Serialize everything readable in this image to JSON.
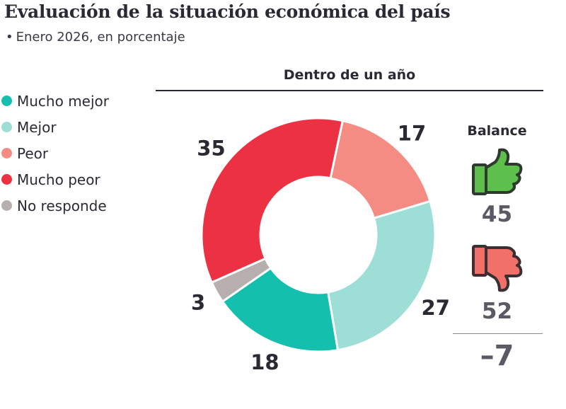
{
  "header": {
    "title": "Evaluación de la situación económica del país",
    "subtitle_bullet": "•",
    "subtitle": "Enero 2026, en porcentaje"
  },
  "chart_data": {
    "type": "pie",
    "variant": "donut",
    "title": "Dentro de un año",
    "categories": [
      "Mucho mejor",
      "Mejor",
      "Peor",
      "Mucho peor",
      "No responde"
    ],
    "values": [
      18,
      27,
      17,
      35,
      3
    ],
    "colors": [
      "#14bfae",
      "#9ddfd6",
      "#f58c84",
      "#ec3242",
      "#b7afad"
    ],
    "value_labels": [
      "18",
      "27",
      "17",
      "35",
      "3"
    ],
    "legend_position": "left"
  },
  "legend": [
    {
      "label": "Mucho mejor",
      "color": "#14bfae"
    },
    {
      "label": "Mejor",
      "color": "#9ddfd6"
    },
    {
      "label": "Peor",
      "color": "#f58c84"
    },
    {
      "label": "Mucho peor",
      "color": "#ec3242"
    },
    {
      "label": "No responde",
      "color": "#b7afad"
    }
  ],
  "balance": {
    "title": "Balance",
    "positive": "45",
    "negative": "52",
    "net": "–7",
    "positive_icon": "thumbs-up-icon",
    "negative_icon": "thumbs-down-icon",
    "positive_color": "#5dc04d",
    "negative_color": "#f17068"
  }
}
